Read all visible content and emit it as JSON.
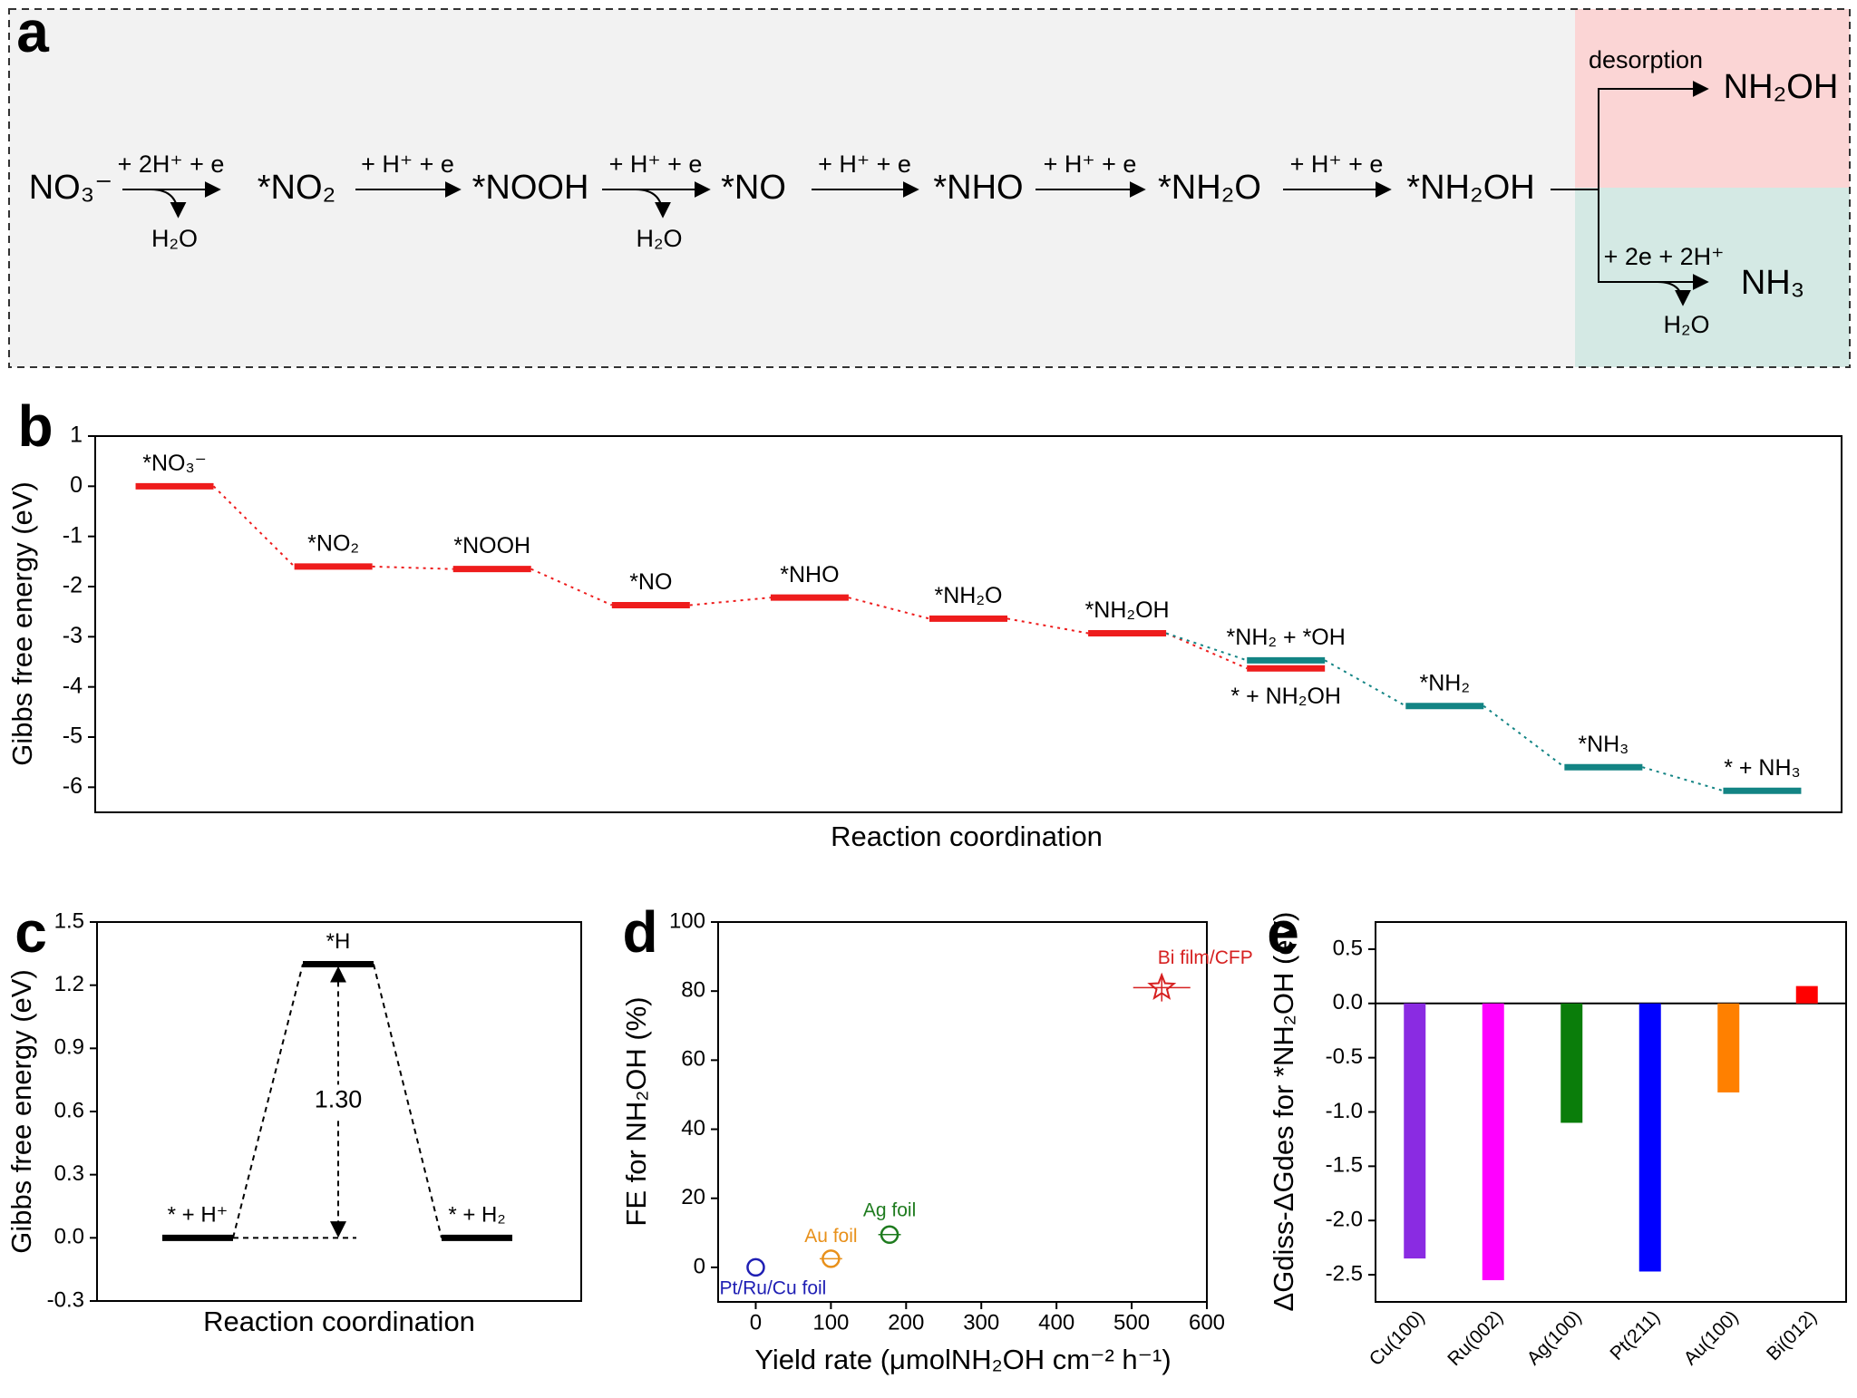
{
  "scheme": {
    "panel": "a",
    "species": [
      "NO₃⁻",
      "*NO₂",
      "*NOOH",
      "*NO",
      "*NHO",
      "*NH₂O",
      "*NH₂OH"
    ],
    "steps": [
      {
        "reagent": "+ 2H⁺ + e",
        "byproduct": "H₂O"
      },
      {
        "reagent": "+ H⁺ + e"
      },
      {
        "reagent": "+ H⁺ + e",
        "byproduct": "H₂O"
      },
      {
        "reagent": "+ H⁺ + e"
      },
      {
        "reagent": "+ H⁺ + e"
      },
      {
        "reagent": "+ H⁺ + e"
      }
    ],
    "branches": [
      {
        "label": "desorption",
        "product": "NH₂OH"
      },
      {
        "label": "+ 2e + 2H⁺",
        "product": "NH₃",
        "byproduct": "H₂O"
      }
    ]
  },
  "chart_data": [
    {
      "type": "energy",
      "panel": "b",
      "ylabel": "Gibbs free energy (eV)",
      "xlabel": "Reaction coordination",
      "ylim": [
        -6.5,
        1
      ],
      "yticks": [
        -6,
        -5,
        -4,
        -3,
        -2,
        -1,
        0,
        1
      ],
      "series": [
        {
          "color": "#ee1c1c",
          "values": [
            0,
            -1.6,
            -1.65,
            -2.37,
            -2.22,
            -2.64,
            -2.93,
            -3.63,
            null,
            null,
            null
          ],
          "labels": [
            "*NO₃⁻",
            "*NO₂",
            "*NOOH",
            "*NO",
            "*NHO",
            "*NH₂O",
            "*NH₂OH",
            "* + NH₂OH",
            null,
            null,
            null
          ]
        },
        {
          "color": "#138484",
          "values": [
            null,
            null,
            null,
            null,
            null,
            null,
            null,
            -3.47,
            -4.38,
            -5.6,
            -6.07
          ],
          "labels": [
            null,
            null,
            null,
            null,
            null,
            null,
            null,
            "*NH₂ + *OH",
            "*NH₂",
            "*NH₃",
            "* + NH₃"
          ]
        }
      ]
    },
    {
      "type": "energy",
      "panel": "c",
      "ylabel": "Gibbs free energy (eV)",
      "xlabel": "Reaction coordination",
      "ylim": [
        -0.3,
        1.5
      ],
      "yticks": [
        -0.3,
        {
          "value": 0,
          "label": "0.0"
        },
        0.3,
        0.6,
        0.9,
        1.2,
        1.5
      ],
      "annotation": "1.30",
      "series": [
        {
          "color": "#000000",
          "values": [
            0,
            1.3,
            0
          ],
          "labels": [
            "* + H⁺",
            "*H",
            "* + H₂"
          ]
        }
      ]
    },
    {
      "type": "scatter",
      "panel": "d",
      "ylabel": "FE for NH₂OH (%)",
      "xlabel": "Yield rate (μmolNH₂OH cm⁻² h⁻¹)",
      "xlim": [
        -50,
        600
      ],
      "xticks": [
        0,
        100,
        200,
        300,
        400,
        500,
        600
      ],
      "ylim": [
        -10,
        100
      ],
      "yticks": [
        0,
        20,
        40,
        60,
        80,
        100
      ],
      "series": [
        {
          "name": "Pt/Ru/Cu foil",
          "color": "#1f1fb4",
          "marker": "circle",
          "x": [
            0
          ],
          "values": [
            0
          ]
        },
        {
          "name": "Au foil",
          "color": "#e8901a",
          "marker": "circle",
          "x": [
            100
          ],
          "values": [
            2.5
          ],
          "xerr": [
            15
          ]
        },
        {
          "name": "Ag foil",
          "color": "#1e7b1e",
          "marker": "circle",
          "x": [
            178
          ],
          "values": [
            9.5
          ],
          "xerr": [
            15
          ]
        },
        {
          "name": "Bi film/CFP",
          "color": "#d62020",
          "marker": "star",
          "x": [
            540
          ],
          "values": [
            81
          ],
          "xerr": [
            38
          ],
          "yerr": [
            4
          ]
        }
      ]
    },
    {
      "type": "bar",
      "panel": "e",
      "ylabel": "ΔGdiss-ΔGdes for *NH₂OH (eV)",
      "categories": [
        "Cu(100)",
        "Ru(002)",
        "Ag(100)",
        "Pt(211)",
        "Au(100)",
        "Bi(012)"
      ],
      "values": [
        -2.35,
        -2.55,
        -1.1,
        -2.47,
        -0.82,
        0.16
      ],
      "colors": [
        "#8a2be2",
        "#ff00ff",
        "#0a7d0a",
        "#0000ff",
        "#ff8000",
        "#ff0000"
      ],
      "ylim": [
        -2.75,
        0.75
      ],
      "yticks": [
        {
          "value": -2.5,
          "label": "-2.5"
        },
        {
          "value": -2,
          "label": "-2.0"
        },
        {
          "value": -1.5,
          "label": "-1.5"
        },
        {
          "value": -1,
          "label": "-1.0"
        },
        {
          "value": -0.5,
          "label": "-0.5"
        },
        {
          "value": 0,
          "label": "0.0"
        },
        {
          "value": 0.5,
          "label": "0.5"
        }
      ]
    }
  ]
}
